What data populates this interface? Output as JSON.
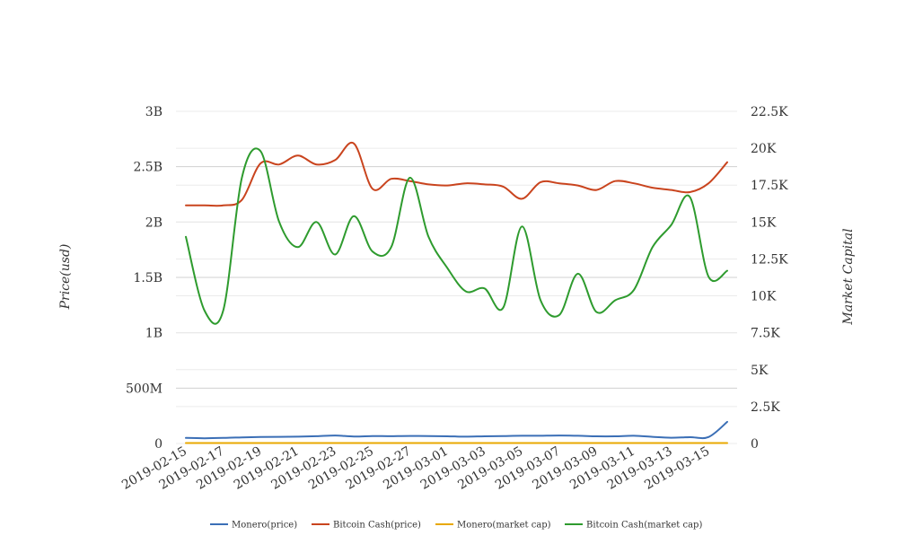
{
  "chart_data": {
    "type": "line",
    "title": "",
    "left_axis": {
      "label": "Price(usd)",
      "ticks": [
        "0",
        "500M",
        "1B",
        "1.5B",
        "2B",
        "2.5B",
        "3B"
      ],
      "ylim": [
        0,
        3000000000
      ]
    },
    "right_axis": {
      "label": "Market Capital",
      "ticks": [
        "0",
        "2.5K",
        "5K",
        "7.5K",
        "10K",
        "12.5K",
        "15K",
        "17.5K",
        "20K",
        "22.5K"
      ],
      "ylim": [
        0,
        22500
      ]
    },
    "x_tick_labels": [
      "2019-02-15",
      "2019-02-17",
      "2019-02-19",
      "2019-02-21",
      "2019-02-23",
      "2019-02-25",
      "2019-02-27",
      "2019-03-01",
      "2019-03-03",
      "2019-03-05",
      "2019-03-07",
      "2019-03-09",
      "2019-03-11",
      "2019-03-13",
      "2019-03-15"
    ],
    "x": [
      "2019-02-15",
      "2019-02-16",
      "2019-02-17",
      "2019-02-18",
      "2019-02-19",
      "2019-02-20",
      "2019-02-21",
      "2019-02-22",
      "2019-02-23",
      "2019-02-24",
      "2019-02-25",
      "2019-02-26",
      "2019-02-27",
      "2019-02-28",
      "2019-03-01",
      "2019-03-02",
      "2019-03-03",
      "2019-03-04",
      "2019-03-05",
      "2019-03-06",
      "2019-03-07",
      "2019-03-08",
      "2019-03-09",
      "2019-03-10",
      "2019-03-11",
      "2019-03-12",
      "2019-03-13",
      "2019-03-14",
      "2019-03-15",
      "2019-03-16"
    ],
    "series": [
      {
        "name": "Monero(price)",
        "axis": "left",
        "color": "#3b6fb6",
        "values": [
          50000000,
          47000000,
          50000000,
          55000000,
          58000000,
          60000000,
          62000000,
          66000000,
          72000000,
          63000000,
          67000000,
          66000000,
          68000000,
          67000000,
          65000000,
          62000000,
          65000000,
          67000000,
          70000000,
          70000000,
          72000000,
          70000000,
          65000000,
          65000000,
          70000000,
          60000000,
          52000000,
          57000000,
          58000000,
          195000000
        ]
      },
      {
        "name": "Bitcoin Cash(price)",
        "axis": "left",
        "color": "#c9441e",
        "values": [
          2150000000,
          2150000000,
          2150000000,
          2200000000,
          2530000000,
          2520000000,
          2600000000,
          2520000000,
          2560000000,
          2710000000,
          2300000000,
          2390000000,
          2370000000,
          2340000000,
          2330000000,
          2350000000,
          2340000000,
          2320000000,
          2210000000,
          2360000000,
          2350000000,
          2330000000,
          2290000000,
          2370000000,
          2350000000,
          2310000000,
          2290000000,
          2270000000,
          2350000000,
          2540000000
        ]
      },
      {
        "name": "Monero(market cap)",
        "axis": "right",
        "color": "#e8a800",
        "values": [
          30,
          30,
          30,
          30,
          30,
          30,
          30,
          30,
          30,
          30,
          30,
          30,
          30,
          30,
          30,
          30,
          30,
          30,
          30,
          30,
          30,
          30,
          30,
          30,
          30,
          30,
          30,
          30,
          30,
          30
        ]
      },
      {
        "name": "Bitcoin Cash(market cap)",
        "axis": "right",
        "color": "#2e9b2e",
        "values": [
          14000,
          9000,
          9000,
          18000,
          19800,
          15000,
          13300,
          15000,
          12800,
          15400,
          13000,
          13300,
          18000,
          14000,
          11900,
          10300,
          10500,
          9200,
          14700,
          9700,
          8700,
          11500,
          8900,
          9700,
          10400,
          13300,
          14800,
          16700,
          11300,
          11700
        ]
      }
    ],
    "legend": {
      "placement": "bottom-center",
      "labels": [
        "Monero(price)",
        "Bitcoin Cash(price)",
        "Monero(market cap)",
        "Bitcoin Cash(market cap)"
      ]
    }
  }
}
